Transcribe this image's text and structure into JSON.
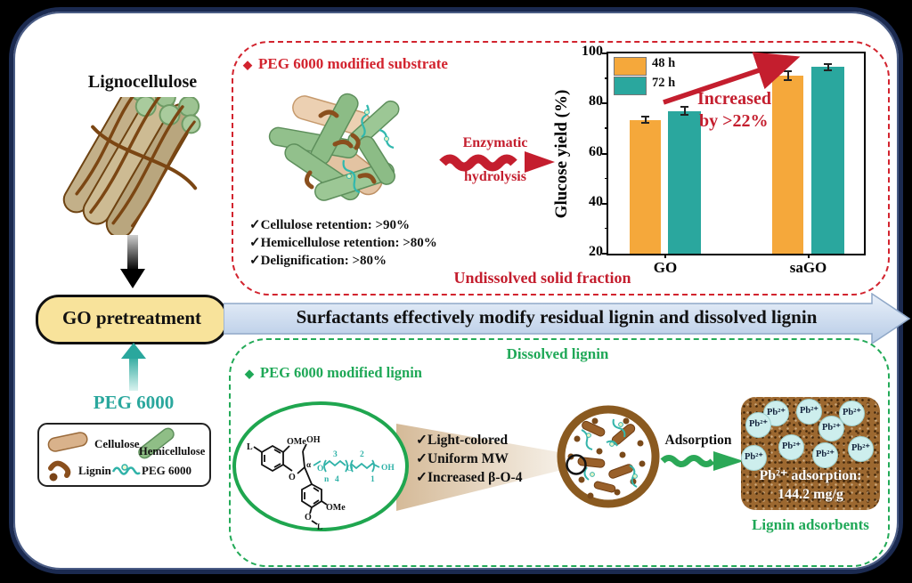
{
  "colors": {
    "accent_red": "#C41E2E",
    "accent_teal": "#2AA79D",
    "accent_green": "#1FA857",
    "accent_orange": "#F5A83B",
    "card_border": "#1B2A50",
    "go_box_fill": "#F8E39B",
    "arrow_blue": "#C9D9EE"
  },
  "left_panel": {
    "lignocellulose_label": "Lignocellulose",
    "go_box_label": "GO pretreatment",
    "peg_label": "PEG 6000",
    "legend": {
      "cellulose": "Cellulose",
      "hemicellulose": "Hemicellulose",
      "lignin": "Lignin",
      "peg": "PEG 6000"
    }
  },
  "top_box": {
    "bullet": "◆",
    "title": "PEG 6000 modified substrate",
    "checklist": [
      "✓Cellulose retention: >90%",
      "✓Hemicellulose retention: >80%",
      "✓Delignification: >80%"
    ],
    "process_line1": "Enzymatic",
    "process_line2": "hydrolysis",
    "annotation_line1": "Increased",
    "annotation_line2": "by >22%",
    "footer": "Undissolved solid fraction"
  },
  "chart_data": {
    "type": "bar",
    "categories": [
      "GO",
      "saGO"
    ],
    "series": [
      {
        "name": "48 h",
        "color": "#F5A83B",
        "values": [
          73.5,
          91
        ]
      },
      {
        "name": "72 h",
        "color": "#2AA79E",
        "values": [
          77,
          94.5
        ]
      }
    ],
    "error_bars": [
      [
        1.2,
        1.8
      ],
      [
        1.5,
        1.2
      ]
    ],
    "ylabel": "Glucose yield (%)",
    "xlabel": "",
    "title": "",
    "ylim": [
      20,
      100
    ],
    "yticks": [
      20,
      40,
      60,
      80,
      100
    ],
    "yticks_minor": [
      30,
      50,
      70,
      90
    ],
    "grid": false,
    "legend_position": "top-left",
    "annotation": "Increased by >22%"
  },
  "main_arrow": {
    "label": "Surfactants effectively modify residual lignin and dissolved lignin"
  },
  "bottom_box": {
    "title": "Dissolved lignin",
    "bullet": "◆",
    "subtitle": "PEG 6000 modified lignin",
    "checklist": [
      "✓Light-colored",
      "✓Uniform MW",
      "✓Increased β-O-4"
    ],
    "adsorption_label": "Adsorption",
    "pb_ion_label": "Pb²⁺",
    "pb_ion_count": 9,
    "pb_line1": "Pb²⁺ adsorption:",
    "pb_line2": "144.2 mg/g",
    "adsorbents_label": "Lignin adsorbents",
    "chem_labels": {
      "l1": "L",
      "ome1": "OMe",
      "oh1": "OH",
      "o1": "O",
      "alpha": "α",
      "o_teal": "O",
      "n3": "3",
      "n2": "2",
      "nn": "n",
      "n4": "4",
      "o_mid": "O",
      "oh_end": "OH",
      "n1": "1",
      "ome2": "OMe",
      "o2": "O",
      "l2": "L"
    }
  }
}
